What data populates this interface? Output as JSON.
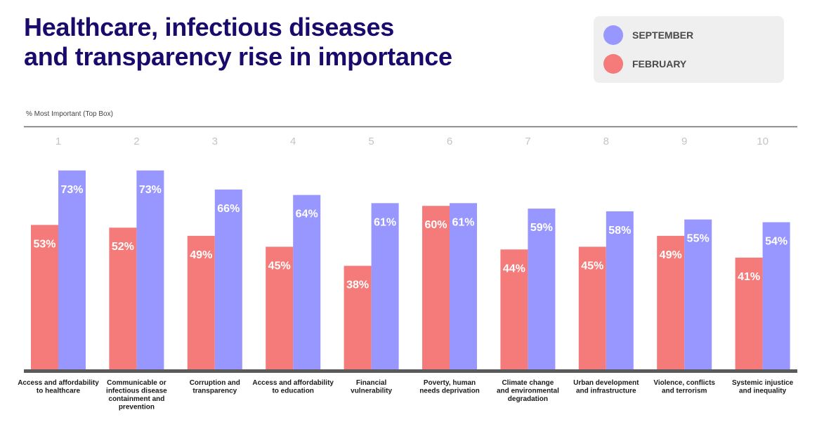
{
  "title_lines": [
    "Healthcare, infectious diseases",
    "and transparency rise in importance"
  ],
  "legend": [
    {
      "label": "SEPTEMBER",
      "color": "#9896ff"
    },
    {
      "label": "FEBRUARY",
      "color": "#f47b7a"
    }
  ],
  "measure_label": "% Most Important (Top Box)",
  "colors": {
    "september": "#9896ff",
    "february": "#f47b7a",
    "axis": "#5a5a5a",
    "title": "#1a0a6b"
  },
  "chart_data": {
    "type": "bar",
    "title": "Healthcare, infectious diseases and transparency rise in importance",
    "ylabel": "% Most Important (Top Box)",
    "ylim": [
      0,
      100
    ],
    "grid": false,
    "legend_position": "top-right",
    "ranks": [
      "1",
      "2",
      "3",
      "4",
      "5",
      "6",
      "7",
      "8",
      "9",
      "10"
    ],
    "categories": [
      [
        "Access and affordability",
        "to healthcare"
      ],
      [
        "Communicable or",
        "infectious disease",
        "containment and",
        "prevention"
      ],
      [
        "Corruption and",
        "transparency"
      ],
      [
        "Access and affordability",
        "to education"
      ],
      [
        "Financial",
        "vulnerability"
      ],
      [
        "Poverty, human",
        "needs deprivation"
      ],
      [
        "Climate change",
        "and environmental",
        "degradation"
      ],
      [
        "Urban development",
        "and infrastructure"
      ],
      [
        "Violence, conflicts",
        "and terrorism"
      ],
      [
        "Systemic injustice",
        "and inequality"
      ]
    ],
    "series": [
      {
        "name": "FEBRUARY",
        "values": [
          53,
          52,
          49,
          45,
          38,
          60,
          44,
          45,
          49,
          41
        ],
        "labels": [
          "53%",
          "52%",
          "49%",
          "45%",
          "38%",
          "60%",
          "44%",
          "45%",
          "49%",
          "41%"
        ]
      },
      {
        "name": "SEPTEMBER",
        "values": [
          73,
          73,
          66,
          64,
          61,
          61,
          59,
          58,
          55,
          54
        ],
        "labels": [
          "73%",
          "73%",
          "66%",
          "64%",
          "61%",
          "61%",
          "59%",
          "58%",
          "55%",
          "54%"
        ]
      }
    ]
  }
}
